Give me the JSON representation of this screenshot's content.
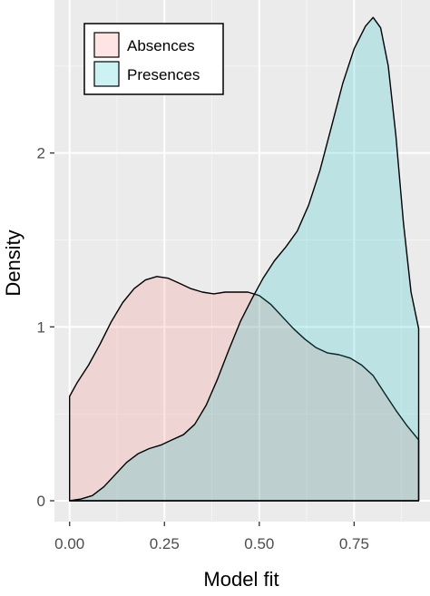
{
  "chart_data": {
    "type": "area",
    "xlabel": "Model fit",
    "ylabel": "Density",
    "xlim": [
      -0.04,
      0.95
    ],
    "ylim": [
      -0.12,
      2.88
    ],
    "x_ticks": [
      0.0,
      0.25,
      0.5,
      0.75
    ],
    "x_tick_labels": [
      "0.00",
      "0.25",
      "0.50",
      "0.75"
    ],
    "y_ticks": [
      0,
      1,
      2
    ],
    "y_tick_labels": [
      "0",
      "1",
      "2"
    ],
    "grid": true,
    "panel_background": "#ebebeb",
    "legend_position": "top-left",
    "series": [
      {
        "name": "Absences",
        "fill": "#f8766d",
        "x": [
          0.0,
          0.02,
          0.05,
          0.08,
          0.11,
          0.14,
          0.17,
          0.2,
          0.23,
          0.26,
          0.29,
          0.32,
          0.35,
          0.38,
          0.41,
          0.44,
          0.47,
          0.5,
          0.53,
          0.56,
          0.59,
          0.62,
          0.65,
          0.68,
          0.71,
          0.74,
          0.77,
          0.8,
          0.83,
          0.86,
          0.89,
          0.92
        ],
        "values": [
          0.6,
          0.68,
          0.78,
          0.9,
          1.03,
          1.14,
          1.22,
          1.27,
          1.29,
          1.28,
          1.25,
          1.22,
          1.2,
          1.19,
          1.2,
          1.2,
          1.2,
          1.18,
          1.13,
          1.06,
          0.99,
          0.93,
          0.88,
          0.85,
          0.84,
          0.82,
          0.78,
          0.72,
          0.62,
          0.52,
          0.43,
          0.35
        ]
      },
      {
        "name": "Presences",
        "fill": "#00bfc4",
        "x": [
          0.0,
          0.03,
          0.06,
          0.09,
          0.12,
          0.15,
          0.18,
          0.21,
          0.24,
          0.27,
          0.3,
          0.33,
          0.36,
          0.39,
          0.42,
          0.45,
          0.48,
          0.51,
          0.54,
          0.57,
          0.6,
          0.63,
          0.66,
          0.69,
          0.72,
          0.75,
          0.78,
          0.8,
          0.82,
          0.84,
          0.86,
          0.88,
          0.9,
          0.92
        ],
        "values": [
          0.0,
          0.01,
          0.03,
          0.08,
          0.15,
          0.22,
          0.27,
          0.3,
          0.32,
          0.35,
          0.38,
          0.44,
          0.55,
          0.7,
          0.87,
          1.03,
          1.16,
          1.28,
          1.38,
          1.46,
          1.55,
          1.7,
          1.9,
          2.15,
          2.4,
          2.6,
          2.73,
          2.78,
          2.72,
          2.5,
          2.1,
          1.6,
          1.2,
          0.99
        ]
      }
    ]
  }
}
